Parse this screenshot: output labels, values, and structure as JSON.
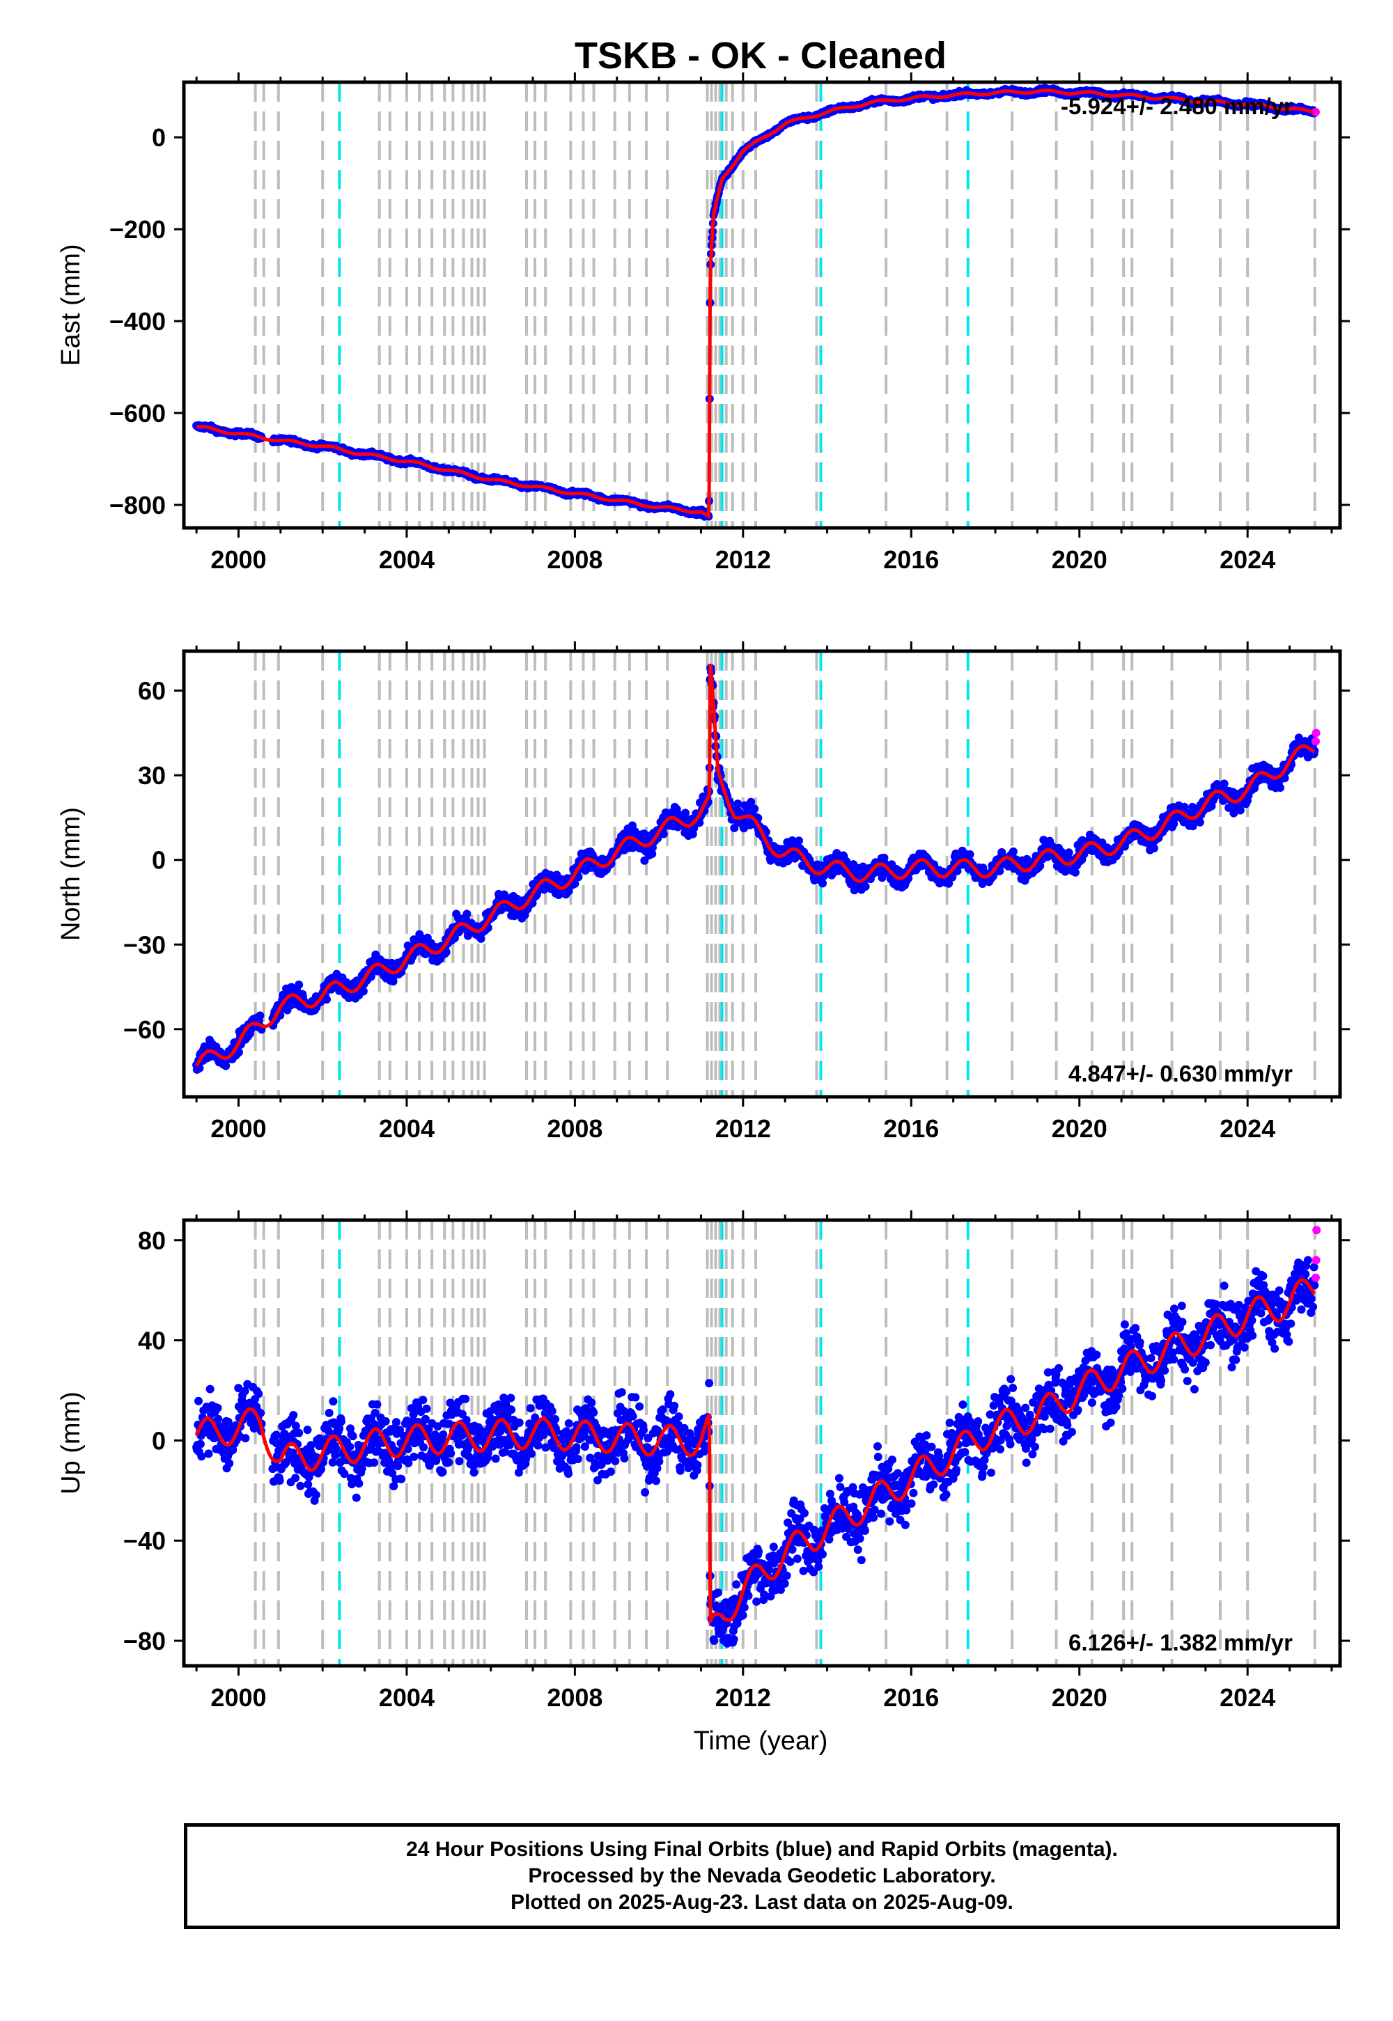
{
  "title": "TSKB  - OK - Cleaned",
  "xlabel": "Time (year)",
  "caption": [
    "24 Hour Positions Using Final Orbits (blue) and Rapid Orbits (magenta).",
    "Processed by the Nevada Geodetic Laboratory.",
    "Plotted on 2025-Aug-23. Last data on 2025-Aug-09."
  ],
  "colors": {
    "final": "#0000ff",
    "rapid": "#ff00ff",
    "model": "#ff0000",
    "step_gray": "#bdbdbd",
    "step_cyan": "#00e5ee"
  },
  "chart_data": [
    {
      "type": "scatter",
      "component": "East",
      "ylabel": "East (mm)",
      "xlim": [
        1998.7,
        2026.2
      ],
      "ylim": [
        -850,
        120
      ],
      "yticks": [
        -800,
        -600,
        -400,
        -200,
        0
      ],
      "xticks": [
        2000,
        2004,
        2008,
        2012,
        2016,
        2020,
        2024
      ],
      "rate_label": "-5.924+/- 2.480 mm/yr",
      "rate_label_position": "top-right",
      "series": [
        {
          "kind": "final",
          "x": [
            1999.0,
            2000.0,
            2001.0,
            2002.0,
            2003.0,
            2004.0,
            2005.0,
            2006.0,
            2007.0,
            2008.0,
            2009.0,
            2010.0,
            2011.0,
            2011.19,
            2011.22,
            2011.3,
            2011.5,
            2012.0,
            2013.0,
            2014.0,
            2015.0,
            2016.0,
            2017.0,
            2018.0,
            2019.0,
            2020.0,
            2021.0,
            2022.0,
            2023.0,
            2024.0,
            2025.0,
            2025.6
          ],
          "y": [
            -630,
            -645,
            -660,
            -672,
            -690,
            -705,
            -725,
            -745,
            -760,
            -775,
            -790,
            -805,
            -815,
            -828,
            -290,
            -170,
            -90,
            -30,
            30,
            55,
            75,
            85,
            92,
            97,
            100,
            97,
            92,
            85,
            78,
            72,
            62,
            55
          ]
        },
        {
          "kind": "rapid",
          "x": [
            2025.62
          ],
          "y": [
            55
          ]
        }
      ],
      "steps": {
        "equipment": [
          2000.4,
          2000.6,
          2000.95,
          2002.0,
          2003.35,
          2003.6,
          2004.0,
          2004.3,
          2004.6,
          2004.9,
          2005.1,
          2005.35,
          2005.55,
          2005.7,
          2005.85,
          2006.85,
          2007.05,
          2007.3,
          2007.9,
          2008.2,
          2008.45,
          2008.95,
          2009.3,
          2009.7,
          2010.2,
          2011.15,
          2011.25,
          2011.35,
          2011.45,
          2011.6,
          2011.75,
          2012.0,
          2012.3,
          2013.75,
          2015.4,
          2016.85,
          2018.4,
          2019.45,
          2020.3,
          2021.05,
          2021.25,
          2022.2,
          2023.35,
          2024.0,
          2025.6
        ],
        "earthquake": [
          2002.4,
          2011.5,
          2013.85,
          2017.35
        ]
      }
    },
    {
      "type": "scatter",
      "component": "North",
      "ylabel": "North (mm)",
      "xlim": [
        1998.7,
        2026.2
      ],
      "ylim": [
        -84,
        74
      ],
      "yticks": [
        -60,
        -30,
        0,
        30,
        60
      ],
      "xticks": [
        2000,
        2004,
        2008,
        2012,
        2016,
        2020,
        2024
      ],
      "rate_label": "4.847+/- 0.630 mm/yr",
      "rate_label_position": "bottom-right",
      "series": [
        {
          "kind": "final",
          "x": [
            1999.0,
            2000.0,
            2001.0,
            2002.0,
            2003.0,
            2004.0,
            2005.0,
            2006.0,
            2007.0,
            2008.0,
            2009.0,
            2010.0,
            2011.0,
            2011.2,
            2011.22,
            2011.4,
            2011.8,
            2012.5,
            2013.0,
            2014.0,
            2015.0,
            2016.0,
            2017.0,
            2018.0,
            2019.0,
            2020.0,
            2021.0,
            2022.0,
            2023.0,
            2024.0,
            2025.0,
            2025.6
          ],
          "y": [
            -73,
            -65,
            -52,
            -48,
            -42,
            -35,
            -28,
            -20,
            -12,
            -5,
            3,
            10,
            17,
            20,
            68,
            30,
            18,
            8,
            2,
            -3,
            -5,
            -3,
            -3,
            -3,
            0,
            2,
            6,
            12,
            20,
            25,
            35,
            40
          ]
        },
        {
          "kind": "rapid",
          "x": [
            2025.62,
            2025.63
          ],
          "y": [
            42,
            45
          ]
        }
      ],
      "steps": {
        "equipment": [
          2000.4,
          2000.6,
          2000.95,
          2002.0,
          2003.35,
          2003.6,
          2004.0,
          2004.3,
          2004.6,
          2004.9,
          2005.1,
          2005.35,
          2005.55,
          2005.7,
          2005.85,
          2006.85,
          2007.05,
          2007.3,
          2007.9,
          2008.2,
          2008.45,
          2008.95,
          2009.3,
          2009.7,
          2010.2,
          2011.15,
          2011.25,
          2011.35,
          2011.45,
          2011.6,
          2011.75,
          2012.0,
          2012.3,
          2013.75,
          2015.4,
          2016.85,
          2018.4,
          2019.45,
          2020.3,
          2021.05,
          2021.25,
          2022.2,
          2023.35,
          2024.0,
          2025.6
        ],
        "earthquake": [
          2002.4,
          2011.5,
          2013.85,
          2017.35
        ]
      }
    },
    {
      "type": "scatter",
      "component": "Up",
      "ylabel": "Up (mm)",
      "xlim": [
        1998.7,
        2026.2
      ],
      "ylim": [
        -90,
        88
      ],
      "yticks": [
        -80,
        -40,
        0,
        40,
        80
      ],
      "xticks": [
        2000,
        2004,
        2008,
        2012,
        2016,
        2020,
        2024
      ],
      "rate_label": "6.126+/- 1.382 mm/yr",
      "rate_label_position": "bottom-right",
      "series": [
        {
          "kind": "final",
          "x": [
            1999.0,
            2000.0,
            2000.5,
            2001.0,
            2002.0,
            2003.0,
            2004.0,
            2005.0,
            2006.0,
            2007.0,
            2008.0,
            2009.0,
            2010.0,
            2011.0,
            2011.2,
            2011.22,
            2011.5,
            2012.0,
            2013.0,
            2014.0,
            2015.0,
            2016.0,
            2017.0,
            2018.0,
            2019.0,
            2020.0,
            2021.0,
            2022.0,
            2023.0,
            2024.0,
            2025.0,
            2025.6
          ],
          "y": [
            2,
            5,
            8,
            -8,
            -5,
            -2,
            0,
            1,
            2,
            3,
            2,
            1,
            0,
            0,
            5,
            -78,
            -70,
            -60,
            -45,
            -35,
            -25,
            -15,
            -5,
            5,
            10,
            20,
            28,
            35,
            42,
            50,
            55,
            62
          ]
        },
        {
          "kind": "rapid",
          "x": [
            2025.62,
            2025.63,
            2025.64
          ],
          "y": [
            65,
            72,
            84
          ]
        }
      ],
      "steps": {
        "equipment": [
          2000.4,
          2000.6,
          2000.95,
          2002.0,
          2003.35,
          2003.6,
          2004.0,
          2004.3,
          2004.6,
          2004.9,
          2005.1,
          2005.35,
          2005.55,
          2005.7,
          2005.85,
          2006.85,
          2007.05,
          2007.3,
          2007.9,
          2008.2,
          2008.45,
          2008.95,
          2009.3,
          2009.7,
          2010.2,
          2011.15,
          2011.25,
          2011.35,
          2011.45,
          2011.6,
          2011.75,
          2012.0,
          2012.3,
          2013.75,
          2015.4,
          2016.85,
          2018.4,
          2019.45,
          2020.3,
          2021.05,
          2021.25,
          2022.2,
          2023.35,
          2024.0,
          2025.6
        ],
        "earthquake": [
          2002.4,
          2011.5,
          2013.85,
          2017.35
        ]
      }
    }
  ]
}
